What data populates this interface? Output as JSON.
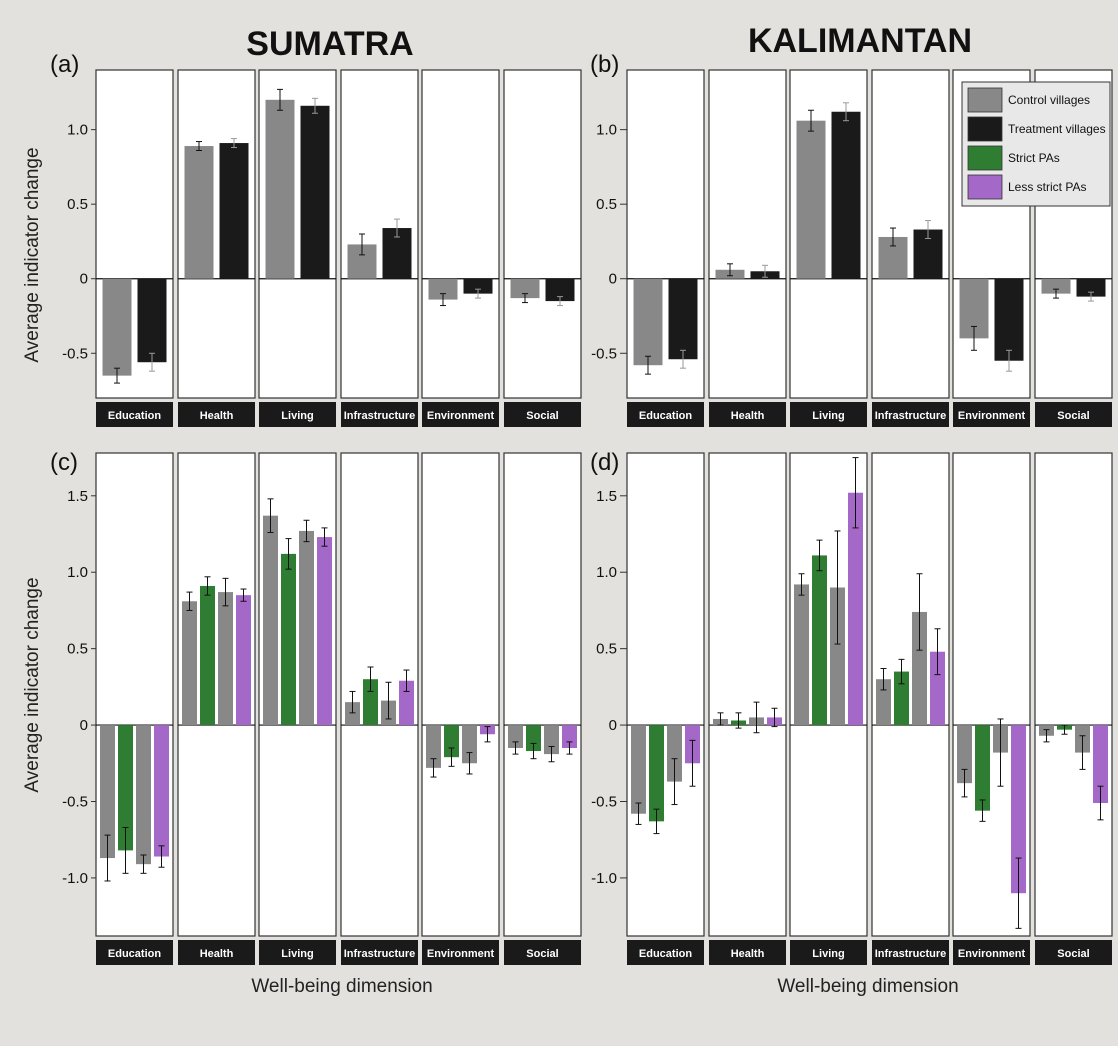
{
  "figure": {
    "titles": [
      "SUMATRA",
      "KALIMANTAN"
    ],
    "xlabel": "Well-being dimension",
    "ylabel": "Average indicator change"
  },
  "legend": {
    "items": [
      {
        "label": "Control villages",
        "color": "#888888"
      },
      {
        "label": "Treatment villages",
        "color": "#1a1a1a"
      },
      {
        "label": "Strict PAs",
        "color": "#2f7d32"
      },
      {
        "label": "Less strict PAs",
        "color": "#a468c8"
      }
    ]
  },
  "chart_data": [
    {
      "panel": "(a)",
      "region": "SUMATRA",
      "type": "bar",
      "categories": [
        "Education",
        "Health",
        "Living",
        "Infrastructure",
        "Environment",
        "Social"
      ],
      "ylim": [
        -0.8,
        1.4
      ],
      "yticks": [
        -0.5,
        0,
        0.5,
        1.0
      ],
      "ytick_labels": [
        "-0.5",
        "0",
        "0.5",
        "1.0"
      ],
      "series": [
        {
          "name": "Control villages",
          "color": "#888888",
          "values": [
            -0.65,
            0.89,
            1.2,
            0.23,
            -0.14,
            -0.13
          ],
          "errors": [
            0.05,
            0.03,
            0.07,
            0.07,
            0.04,
            0.03
          ]
        },
        {
          "name": "Treatment villages",
          "color": "#1a1a1a",
          "values": [
            -0.56,
            0.91,
            1.16,
            0.34,
            -0.1,
            -0.15
          ],
          "errors": [
            0.06,
            0.03,
            0.05,
            0.06,
            0.03,
            0.03
          ]
        }
      ]
    },
    {
      "panel": "(b)",
      "region": "KALIMANTAN",
      "type": "bar",
      "categories": [
        "Education",
        "Health",
        "Living",
        "Infrastructure",
        "Environment",
        "Social"
      ],
      "ylim": [
        -0.8,
        1.4
      ],
      "yticks": [
        -0.5,
        0,
        0.5,
        1.0
      ],
      "ytick_labels": [
        "-0.5",
        "0",
        "0.5",
        "1.0"
      ],
      "series": [
        {
          "name": "Control villages",
          "color": "#888888",
          "values": [
            -0.58,
            0.06,
            1.06,
            0.28,
            -0.4,
            -0.1
          ],
          "errors": [
            0.06,
            0.04,
            0.07,
            0.06,
            0.08,
            0.03
          ]
        },
        {
          "name": "Treatment villages",
          "color": "#1a1a1a",
          "values": [
            -0.54,
            0.05,
            1.12,
            0.33,
            -0.55,
            -0.12
          ],
          "errors": [
            0.06,
            0.04,
            0.06,
            0.06,
            0.07,
            0.03
          ]
        }
      ]
    },
    {
      "panel": "(c)",
      "region": "SUMATRA",
      "type": "bar",
      "categories": [
        "Education",
        "Health",
        "Living",
        "Infrastructure",
        "Environment",
        "Social"
      ],
      "ylim": [
        -1.38,
        1.78
      ],
      "yticks": [
        -1.0,
        -0.5,
        0,
        0.5,
        1.0,
        1.5
      ],
      "ytick_labels": [
        "-1.0",
        "-0.5",
        "0",
        "0.5",
        "1.0",
        "1.5"
      ],
      "series": [
        {
          "name": "Control villages",
          "color": "#888888",
          "values": [
            -0.87,
            0.81,
            1.37,
            0.15,
            -0.28,
            -0.15
          ],
          "errors": [
            0.15,
            0.06,
            0.11,
            0.07,
            0.06,
            0.04
          ]
        },
        {
          "name": "Strict PAs",
          "color": "#2f7d32",
          "values": [
            -0.82,
            0.91,
            1.12,
            0.3,
            -0.21,
            -0.17
          ],
          "errors": [
            0.15,
            0.06,
            0.1,
            0.08,
            0.06,
            0.05
          ]
        },
        {
          "name": "Control villages",
          "color": "#888888",
          "values": [
            -0.91,
            0.87,
            1.27,
            0.16,
            -0.25,
            -0.19
          ],
          "errors": [
            0.06,
            0.09,
            0.07,
            0.12,
            0.07,
            0.05
          ]
        },
        {
          "name": "Less strict PAs",
          "color": "#a468c8",
          "values": [
            -0.86,
            0.85,
            1.23,
            0.29,
            -0.06,
            -0.15
          ],
          "errors": [
            0.07,
            0.04,
            0.06,
            0.07,
            0.05,
            0.04
          ]
        }
      ]
    },
    {
      "panel": "(d)",
      "region": "KALIMANTAN",
      "type": "bar",
      "categories": [
        "Education",
        "Health",
        "Living",
        "Infrastructure",
        "Environment",
        "Social"
      ],
      "ylim": [
        -1.38,
        1.78
      ],
      "yticks": [
        -1.0,
        -0.5,
        0,
        0.5,
        1.0,
        1.5
      ],
      "ytick_labels": [
        "-1.0",
        "-0.5",
        "0",
        "0.5",
        "1.0",
        "1.5"
      ],
      "series": [
        {
          "name": "Control villages",
          "color": "#888888",
          "values": [
            -0.58,
            0.04,
            0.92,
            0.3,
            -0.38,
            -0.07
          ],
          "errors": [
            0.07,
            0.04,
            0.07,
            0.07,
            0.09,
            0.04
          ]
        },
        {
          "name": "Strict PAs",
          "color": "#2f7d32",
          "values": [
            -0.63,
            0.03,
            1.11,
            0.35,
            -0.56,
            -0.03
          ],
          "errors": [
            0.08,
            0.05,
            0.1,
            0.08,
            0.07,
            0.03
          ]
        },
        {
          "name": "Control villages",
          "color": "#888888",
          "values": [
            -0.37,
            0.05,
            0.9,
            0.74,
            -0.18,
            -0.18
          ],
          "errors": [
            0.15,
            0.1,
            0.37,
            0.25,
            0.22,
            0.11
          ]
        },
        {
          "name": "Less strict PAs",
          "color": "#a468c8",
          "values": [
            -0.25,
            0.05,
            1.52,
            0.48,
            -1.1,
            -0.51
          ],
          "errors": [
            0.15,
            0.06,
            0.23,
            0.15,
            0.23,
            0.11
          ]
        }
      ]
    }
  ]
}
